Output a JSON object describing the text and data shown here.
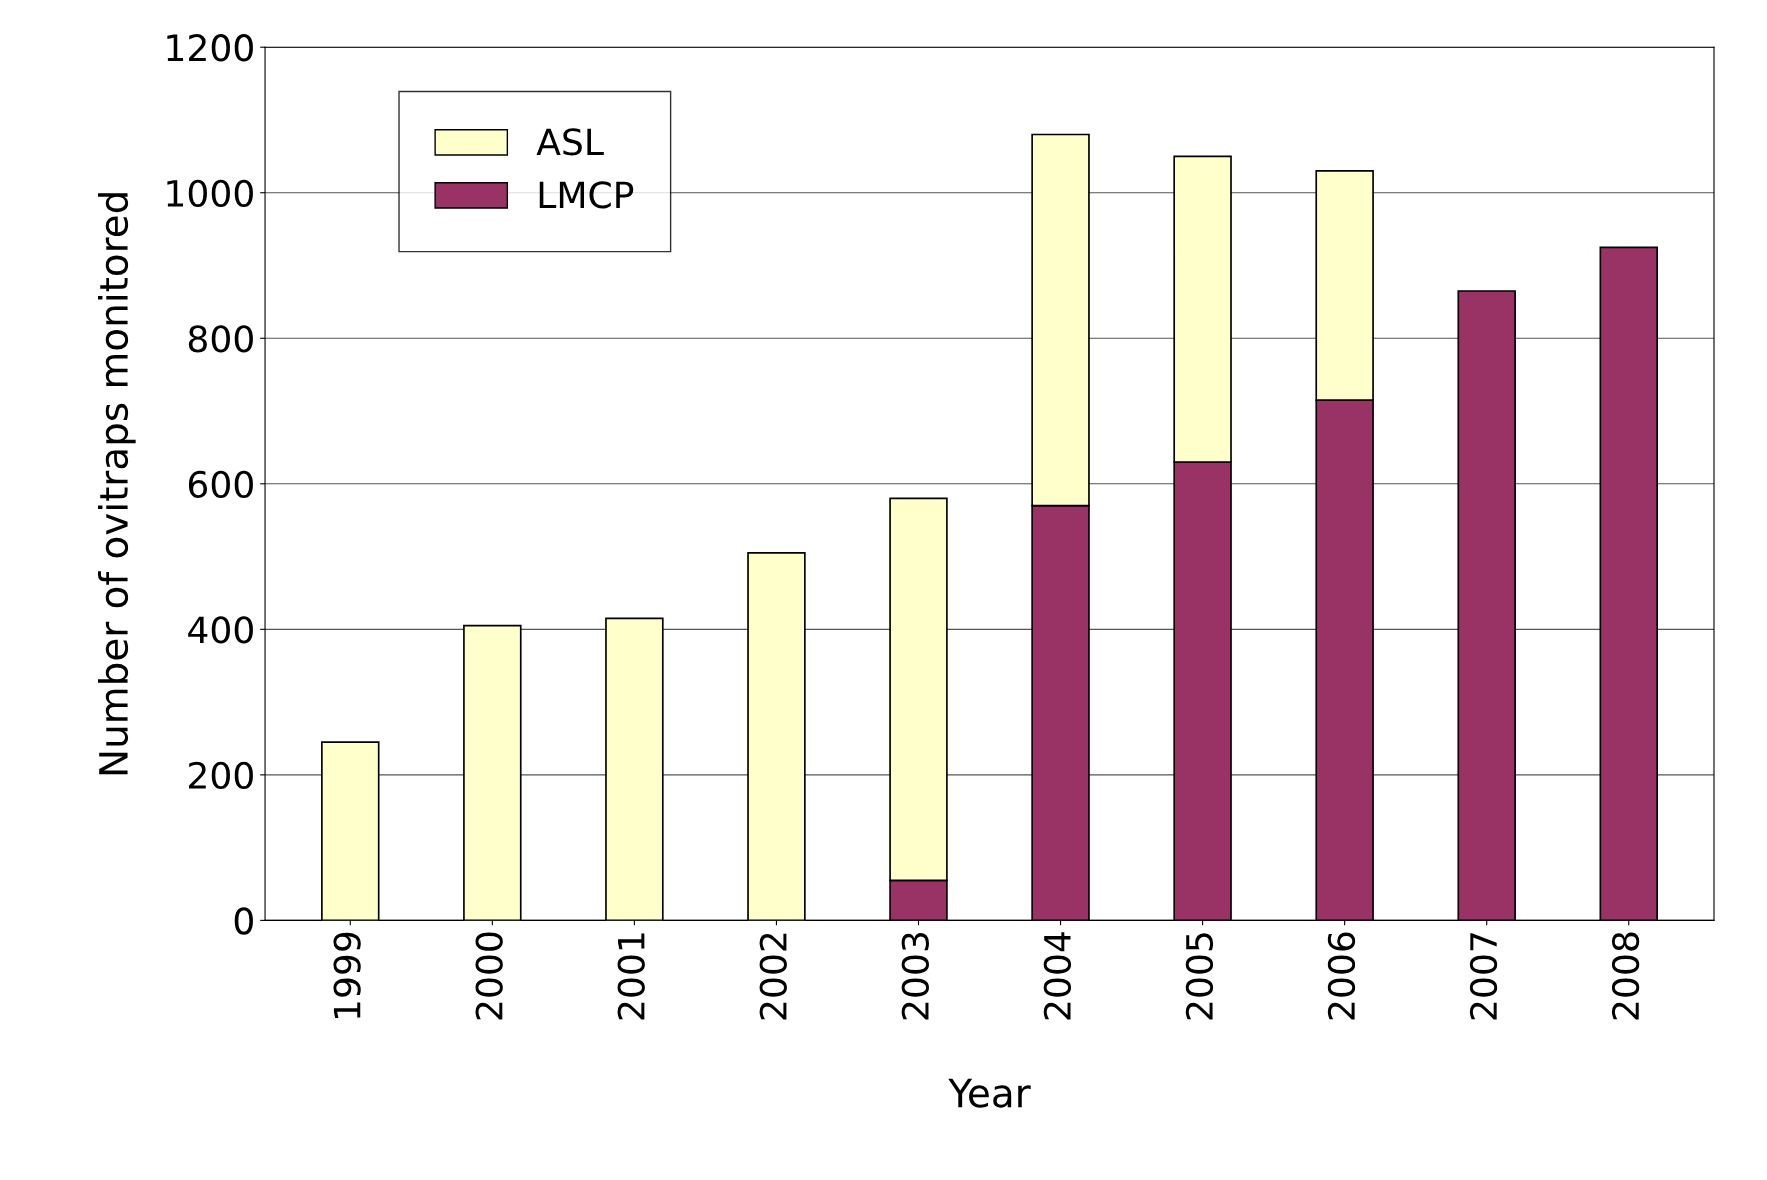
{
  "chart_data": {
    "type": "bar",
    "stacked": true,
    "xlabel": "Year",
    "ylabel": "Number of ovitraps monitored",
    "categories": [
      "1999",
      "2000",
      "2001",
      "2002",
      "2003",
      "2004",
      "2005",
      "2006",
      "2007",
      "2008"
    ],
    "series": [
      {
        "name": "LMCP",
        "color": "#993366",
        "values": [
          0,
          0,
          0,
          0,
          55,
          570,
          630,
          715,
          865,
          925
        ]
      },
      {
        "name": "ASL",
        "color": "#ffffcc",
        "values": [
          245,
          405,
          415,
          505,
          525,
          510,
          420,
          315,
          0,
          0
        ]
      }
    ],
    "ylim": [
      0,
      1200
    ],
    "yticks": [
      0,
      200,
      400,
      600,
      800,
      1000,
      1200
    ],
    "grid": "y",
    "legend": "top left"
  }
}
